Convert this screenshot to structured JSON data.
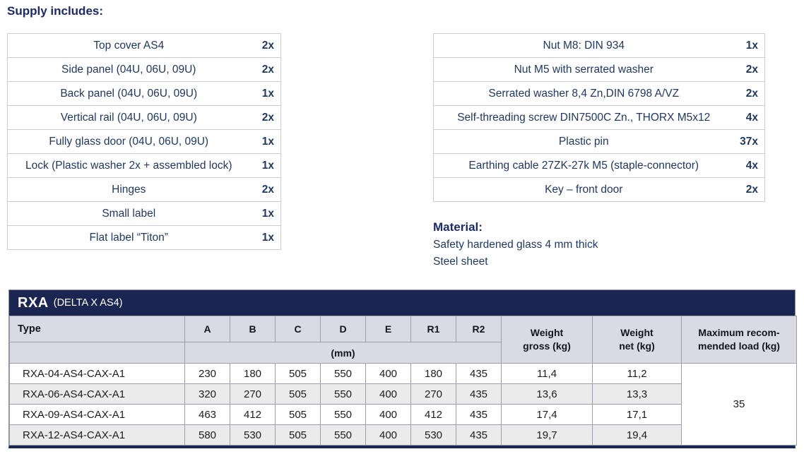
{
  "page": {
    "heading": "Supply includes:"
  },
  "colors": {
    "navy_bar": "#1b2551",
    "header_bg": "#d9dae6",
    "row_alt_bg": "#ebebeb",
    "text_navy": "#1f3864",
    "grid_gray": "#9b9fa8"
  },
  "supply_left": {
    "rows": [
      {
        "item": "Top cover AS4",
        "qty": "2x"
      },
      {
        "item": "Side panel (04U, 06U, 09U)",
        "qty": "2x"
      },
      {
        "item": "Back panel (04U, 06U, 09U)",
        "qty": "1x"
      },
      {
        "item": "Vertical rail (04U, 06U, 09U)",
        "qty": "2x"
      },
      {
        "item": "Fully glass door (04U, 06U, 09U)",
        "qty": "1x"
      },
      {
        "item": "Lock (Plastic washer 2x + assembled lock)",
        "qty": "1x"
      },
      {
        "item": "Hinges",
        "qty": "2x"
      },
      {
        "item": "Small label",
        "qty": "1x"
      },
      {
        "item": "Flat label “Titon”",
        "qty": "1x"
      }
    ]
  },
  "supply_right": {
    "rows": [
      {
        "item": "Nut M8: DIN 934",
        "qty": "1x"
      },
      {
        "item": "Nut M5 with serrated washer",
        "qty": "2x"
      },
      {
        "item": "Serrated washer 8,4 Zn,DIN 6798 A/VZ",
        "qty": "2x"
      },
      {
        "item": "Self-threading screw DIN7500C Zn., THORX M5x12",
        "qty": "4x"
      },
      {
        "item": "Plastic pin",
        "qty": "37x"
      },
      {
        "item": "Earthing cable 27ZK-27k M5 (staple-connector)",
        "qty": "4x"
      },
      {
        "item": "Key – front door",
        "qty": "2x"
      }
    ]
  },
  "material": {
    "heading": "Material:",
    "lines": [
      "Safety hardened glass 4 mm thick",
      "Steel sheet"
    ]
  },
  "rxa_table": {
    "title": "RXA",
    "title_suffix": "(DELTA X AS4)",
    "type_header": "Type",
    "dim_headers": [
      "A",
      "B",
      "C",
      "D",
      "E",
      "R1",
      "R2"
    ],
    "unit_label": "(mm)",
    "weight_gross_header": "Weight\ngross (kg)",
    "weight_net_header": "Weight\nnet (kg)",
    "max_load_header": "Maximum recom-\nmended load (kg)",
    "rows": [
      {
        "type": "RXA-04-AS4-CAX-A1",
        "dims": [
          "230",
          "180",
          "505",
          "550",
          "400",
          "180",
          "435"
        ],
        "gross": "11,4",
        "net": "11,2"
      },
      {
        "type": "RXA-06-AS4-CAX-A1",
        "dims": [
          "320",
          "270",
          "505",
          "550",
          "400",
          "270",
          "435"
        ],
        "gross": "13,6",
        "net": "13,3"
      },
      {
        "type": "RXA-09-AS4-CAX-A1",
        "dims": [
          "463",
          "412",
          "505",
          "550",
          "400",
          "412",
          "435"
        ],
        "gross": "17,4",
        "net": "17,1"
      },
      {
        "type": "RXA-12-AS4-CAX-A1",
        "dims": [
          "580",
          "530",
          "505",
          "550",
          "400",
          "530",
          "435"
        ],
        "gross": "19,7",
        "net": "19,4"
      }
    ],
    "max_load_value": "35"
  }
}
